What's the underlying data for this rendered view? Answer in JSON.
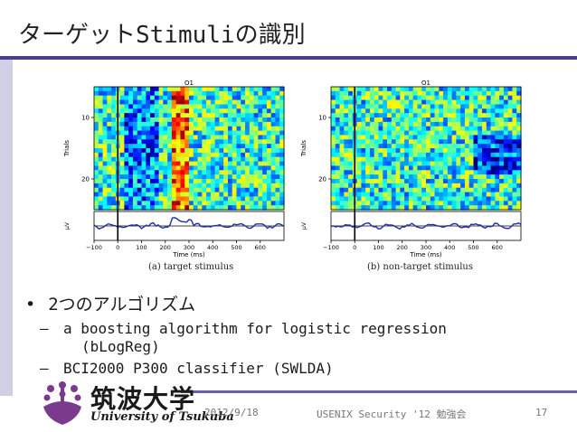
{
  "slide": {
    "title": "ターゲットStimuliの識別",
    "bullet": "2つのアルゴリズム",
    "sub_items": [
      "a boosting algorithm for logistic regression",
      "(bLogReg)",
      "BCI2000 P300 classifier (SWLDA)"
    ],
    "bullet_marker": "•",
    "dash_marker": "–"
  },
  "figure": {
    "panels": [
      {
        "title": "O1",
        "caption": "(a) target stimulus"
      },
      {
        "title": "O1",
        "caption": "(b) non-target stimulus"
      }
    ],
    "ylabel_top": "Trials",
    "ylabel_bottom": "µV",
    "xlabel": "Time (ms)",
    "yticks_top": [
      "20",
      "10"
    ],
    "xticks": [
      "−100",
      "0",
      "100",
      "200",
      "300",
      "400",
      "500",
      "600"
    ]
  },
  "chart_data": [
    {
      "type": "heatmap",
      "title": "O1",
      "xlabel": "Time (ms)",
      "ylabel": "Trials",
      "xlim": [
        -100,
        700
      ],
      "ylim": [
        5,
        25
      ],
      "x_ticks": [
        -100,
        0,
        100,
        200,
        300,
        400,
        500,
        600
      ],
      "y_ticks": [
        10,
        20
      ],
      "caption": "(a) target stimulus"
    },
    {
      "type": "heatmap",
      "title": "O1",
      "xlabel": "Time (ms)",
      "ylabel": "Trials",
      "xlim": [
        -100,
        700
      ],
      "ylim": [
        5,
        25
      ],
      "x_ticks": [
        -100,
        0,
        100,
        200,
        300,
        400,
        500,
        600
      ],
      "y_ticks": [
        10,
        20
      ],
      "caption": "(b) non-target stimulus"
    }
  ],
  "logo": {
    "jp": "筑波大学",
    "en": "University of Tsukuba"
  },
  "footer": {
    "date": "2012/9/18",
    "event": "USENIX Security '12 勉強会",
    "page": "17"
  },
  "colors": {
    "title_rule": "#4a3e8c",
    "sidebar": "#cfcfe6",
    "footer_rule": "#6a5fa8",
    "erp_line": "#1f2fa8"
  }
}
